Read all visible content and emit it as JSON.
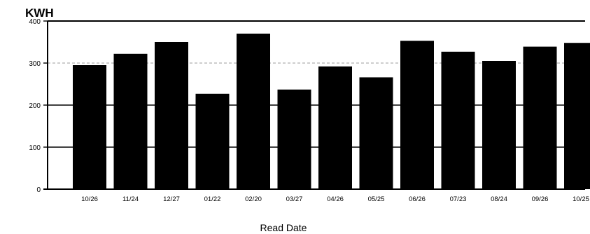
{
  "chart_data": {
    "type": "bar",
    "title": "",
    "ylabel": "KWH",
    "xlabel": "Read Date",
    "ylim": [
      0,
      400
    ],
    "yticks": [
      0,
      100,
      200,
      300,
      400
    ],
    "yticklabels": [
      "0",
      "100",
      "200",
      "300",
      "400"
    ],
    "grid": true,
    "categories": [
      "10/26",
      "11/24",
      "12/27",
      "01/22",
      "02/20",
      "03/27",
      "04/26",
      "05/25",
      "06/26",
      "07/23",
      "08/24",
      "09/26",
      "10/25"
    ],
    "values": [
      295,
      322,
      350,
      227,
      370,
      237,
      292,
      266,
      353,
      327,
      305,
      339,
      348
    ],
    "bar_color": "#000000"
  }
}
